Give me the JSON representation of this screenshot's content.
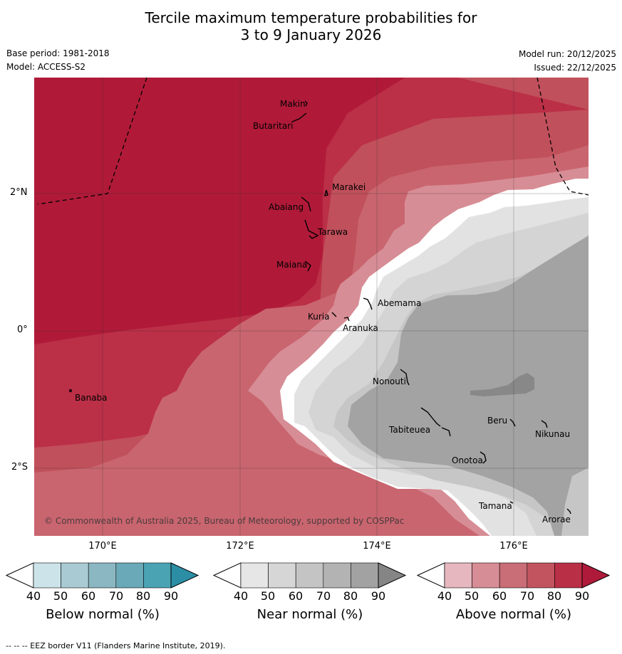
{
  "title": {
    "line1": "Tercile maximum temperature probabilities for",
    "line2": "3 to 9 January 2026"
  },
  "meta": {
    "base_period": "Base period: 1981-2018",
    "model": "Model: ACCESS-S2",
    "model_run": "Model run: 20/12/2025",
    "issued": "Issued: 22/12/2025"
  },
  "map": {
    "lat_labels": [
      "2°N",
      "0°",
      "2°S"
    ],
    "lon_labels": [
      "170°E",
      "172°E",
      "174°E",
      "176°E"
    ],
    "places": [
      "Makin",
      "Butaritari",
      "Marakei",
      "Abaiang",
      "Tarawa",
      "Maiana",
      "Abemama",
      "Kuria",
      "Aranuka",
      "Nonouti",
      "Banaba",
      "Tabiteuea",
      "Beru",
      "Nikunau",
      "Onotoa",
      "Tamana",
      "Arorae"
    ],
    "copyright": "© Commonwealth of Australia 2025, Bureau of Meteorology, supported by COSPPac"
  },
  "colorbars": [
    {
      "label": "Below normal (%)",
      "ticks": [
        "40",
        "50",
        "60",
        "70",
        "80",
        "90"
      ],
      "colors": [
        "#ffffff",
        "#cce3ea",
        "#a9cad2",
        "#8bb7c2",
        "#6aa9b7",
        "#4aa3b3",
        "#2c8ea4"
      ]
    },
    {
      "label": "Near normal (%)",
      "ticks": [
        "40",
        "50",
        "60",
        "70",
        "80",
        "90"
      ],
      "colors": [
        "#ffffff",
        "#e6e6e6",
        "#d6d6d6",
        "#c4c4c4",
        "#b3b3b3",
        "#a2a2a2",
        "#858585"
      ]
    },
    {
      "label": "Above normal (%)",
      "ticks": [
        "40",
        "50",
        "60",
        "70",
        "80",
        "90"
      ],
      "colors": [
        "#ffffff",
        "#e6b7be",
        "#d78d95",
        "#c96d76",
        "#c25460",
        "#b92f46",
        "#b01a3a"
      ]
    }
  ],
  "legend_note": "--  --  -- EEZ border V11 (Flanders Marine Institute, 2019).",
  "colors": {
    "above_90": "#b01a38",
    "above_80": "#bb2f47",
    "above_70": "#c0505b",
    "above_60": "#c9656f",
    "above_50": "#d78d95",
    "near_40": "#e8e8e8",
    "near_50": "#d6d6d6",
    "near_60": "#c6c6c6",
    "near_70": "#a3a3a3",
    "near_80": "#888888"
  }
}
